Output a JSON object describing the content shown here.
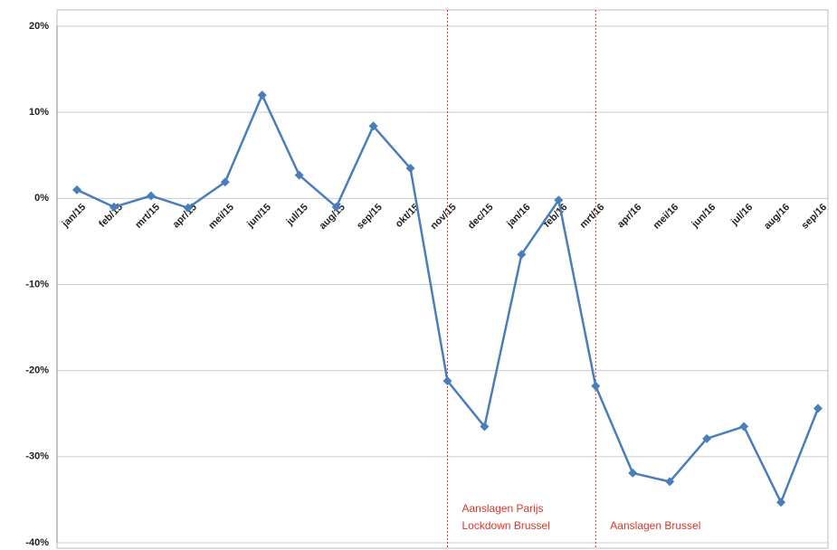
{
  "chart_data": {
    "type": "line",
    "categories": [
      "jan/15",
      "feb/15",
      "mrt/15",
      "apr/15",
      "mei/15",
      "jun/15",
      "jul/15",
      "aug/15",
      "sep/15",
      "okt/15",
      "nov/15",
      "dec/15",
      "jan/16",
      "feb/16",
      "mrt/16",
      "apr/16",
      "mei/16",
      "jun/16",
      "jul/16",
      "aug/16",
      "sep/16"
    ],
    "series": [
      {
        "color": "#4a7ebb",
        "values": [
          1.0,
          -1.0,
          0.3,
          -1.1,
          1.9,
          12.0,
          2.7,
          -1.0,
          8.4,
          3.5,
          -21.2,
          -26.5,
          -6.5,
          -0.2,
          -21.8,
          -31.9,
          -32.9,
          -27.9,
          -26.5,
          -35.3,
          -24.4
        ]
      }
    ],
    "ylim": [
      -40,
      20
    ],
    "yticks": [
      {
        "value": -40,
        "label": "-40%"
      },
      {
        "value": -30,
        "label": "-30%"
      },
      {
        "value": -20,
        "label": "-20%"
      },
      {
        "value": -10,
        "label": "-10%"
      },
      {
        "value": 0,
        "label": "0%"
      },
      {
        "value": 10,
        "label": "10%"
      },
      {
        "value": 20,
        "label": "20%"
      }
    ],
    "grid": true,
    "annotations": [
      {
        "x": "nov/15",
        "color": "#d9352b",
        "lines": [
          "Aanslagen Parijs",
          "Lockdown Brussel"
        ]
      },
      {
        "x": "mrt/16",
        "color": "#d9352b",
        "lines": [
          "Aanslagen Brussel"
        ]
      }
    ]
  }
}
